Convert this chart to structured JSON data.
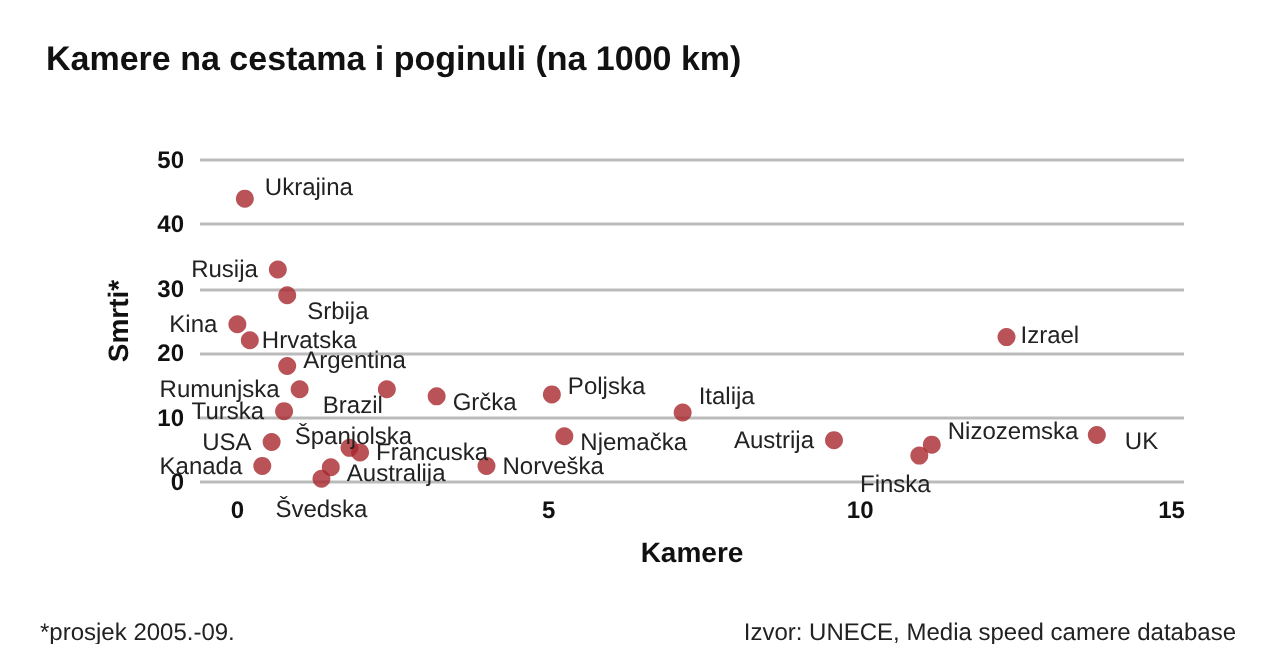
{
  "chart_data": {
    "type": "scatter",
    "title": "Kamere na cestama i poginuli (na 1000 km)",
    "xlabel": "Kamere",
    "ylabel": "Smrti*",
    "x": [
      0.12,
      0.65,
      0.8,
      0,
      0.2,
      0.8,
      1.0,
      2.4,
      3.2,
      5.05,
      7.15,
      12.35,
      0.75,
      0.55,
      1.8,
      1.97,
      1.5,
      1.35,
      0.4,
      4.0,
      5.25,
      9.58,
      10.95,
      11.15,
      13.8
    ],
    "values": [
      44,
      33,
      29,
      24.5,
      22,
      18,
      14.4,
      14.4,
      13.3,
      13.6,
      10.8,
      22.5,
      11,
      6.2,
      5.3,
      4.6,
      2.3,
      0.5,
      2.5,
      2.5,
      7.1,
      6.5,
      4.1,
      5.8,
      7.3
    ],
    "color": "#a8282e",
    "marker": "circle",
    "xlim": [
      -0.6,
      15.2
    ],
    "xticks": [
      0,
      5,
      10,
      15
    ],
    "ylim": [
      0,
      50
    ],
    "yticks": [
      0,
      10,
      20,
      30,
      40,
      50
    ],
    "grid": "y",
    "annotations": [
      {
        "text": "Ukrajina",
        "x": 0.12,
        "y": 44
      },
      {
        "text": "Rusija",
        "x": 0.65,
        "y": 33
      },
      {
        "text": "Srbija",
        "x": 0.8,
        "y": 29
      },
      {
        "text": "Kina",
        "x": 0,
        "y": 24.5
      },
      {
        "text": "Hrvatska",
        "x": 0.2,
        "y": 22
      },
      {
        "text": "Argentina",
        "x": 0.8,
        "y": 18
      },
      {
        "text": "Rumunjska",
        "x": 1.0,
        "y": 14.4
      },
      {
        "text": "Brazil",
        "x": 2.4,
        "y": 14.4
      },
      {
        "text": "Grčka",
        "x": 3.2,
        "y": 13.3
      },
      {
        "text": "Poljska",
        "x": 5.05,
        "y": 13.6
      },
      {
        "text": "Italija",
        "x": 7.15,
        "y": 10.8
      },
      {
        "text": "Izrael",
        "x": 12.35,
        "y": 22.5
      },
      {
        "text": "Turska",
        "x": 0.75,
        "y": 11
      },
      {
        "text": "USA",
        "x": 0.55,
        "y": 6.2
      },
      {
        "text": "Španjolska",
        "x": 1.8,
        "y": 5.3
      },
      {
        "text": "Francuska",
        "x": 1.97,
        "y": 4.6
      },
      {
        "text": "Australija",
        "x": 1.5,
        "y": 2.3
      },
      {
        "text": "Švedska",
        "x": 1.35,
        "y": 0.5
      },
      {
        "text": "Kanada",
        "x": 0.4,
        "y": 2.5
      },
      {
        "text": "Norveška",
        "x": 4.0,
        "y": 2.5
      },
      {
        "text": "Njemačka",
        "x": 5.25,
        "y": 7.1
      },
      {
        "text": "Austrija",
        "x": 9.58,
        "y": 6.5
      },
      {
        "text": "Finska",
        "x": 10.95,
        "y": 4.1
      },
      {
        "text": "Nizozemska",
        "x": 11.15,
        "y": 5.8
      },
      {
        "text": "UK",
        "x": 13.8,
        "y": 7.3
      },
      "*prosjek 2005.-09.",
      "Izvor: UNECE, Media speed camere database"
    ]
  }
}
